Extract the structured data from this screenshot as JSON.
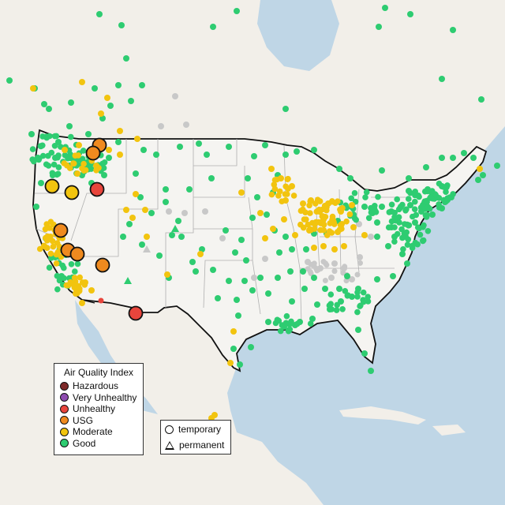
{
  "legend": {
    "title": "Air Quality Index",
    "items": [
      {
        "label": "Hazardous",
        "color": "#7e2a2a"
      },
      {
        "label": "Very Unhealthy",
        "color": "#8e4cb0"
      },
      {
        "label": "Unhealthy",
        "color": "#e8453c"
      },
      {
        "label": "USG",
        "color": "#ef8a1f"
      },
      {
        "label": "Moderate",
        "color": "#f2c40f"
      },
      {
        "label": "Good",
        "color": "#2ecc71"
      }
    ]
  },
  "monitor_types": {
    "items": [
      {
        "label": "temporary",
        "symbol": "circle"
      },
      {
        "label": "permanent",
        "symbol": "triangle"
      }
    ]
  },
  "colors": {
    "water": "#bfd6e6",
    "land": "#f2efe9",
    "us_land": "#f5f4f1",
    "border": "#111111",
    "state_line": "#b0b0b0",
    "no_data": "#c8c8c8"
  }
}
